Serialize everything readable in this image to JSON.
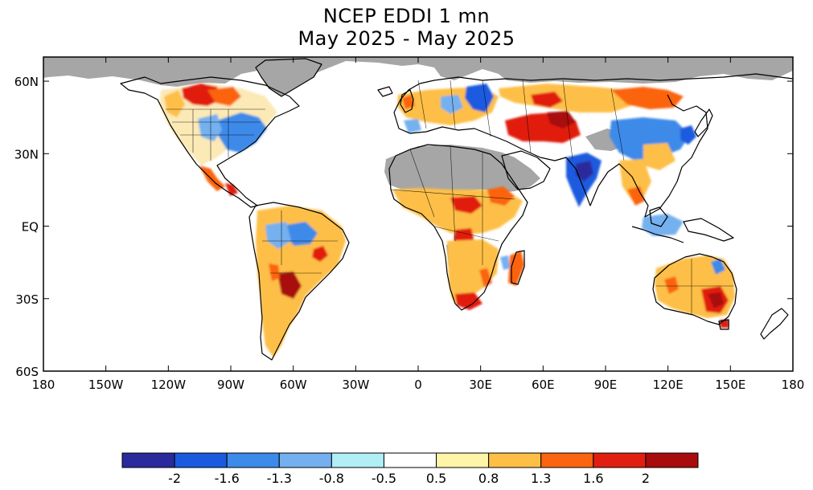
{
  "title": {
    "line1": "NCEP EDDI 1 mn",
    "line2": "May 2025 - May 2025"
  },
  "map": {
    "projection": "equirectangular",
    "lon_range": [
      -180,
      180
    ],
    "lat_range": [
      -60,
      70
    ],
    "x_ticks": [
      {
        "lon": -180,
        "label": "180"
      },
      {
        "lon": -150,
        "label": "150W"
      },
      {
        "lon": -120,
        "label": "120W"
      },
      {
        "lon": -90,
        "label": "90W"
      },
      {
        "lon": -60,
        "label": "60W"
      },
      {
        "lon": -30,
        "label": "30W"
      },
      {
        "lon": 0,
        "label": "0"
      },
      {
        "lon": 30,
        "label": "30E"
      },
      {
        "lon": 60,
        "label": "60E"
      },
      {
        "lon": 90,
        "label": "90E"
      },
      {
        "lon": 120,
        "label": "120E"
      },
      {
        "lon": 150,
        "label": "150E"
      },
      {
        "lon": 180,
        "label": "180"
      }
    ],
    "y_ticks": [
      {
        "lat": 60,
        "label": "60N"
      },
      {
        "lat": 30,
        "label": "30N"
      },
      {
        "lat": 0,
        "label": "EQ"
      },
      {
        "lat": -30,
        "label": "30S"
      },
      {
        "lat": -60,
        "label": "60S"
      }
    ],
    "colors": {
      "nodata": "#a6a6a6",
      "ocean": "#ffffff"
    }
  },
  "colorbar": {
    "colors": [
      "#2a2a9c",
      "#1a5adf",
      "#3c8ae9",
      "#74b0ef",
      "#b1eef6",
      "#ffffff",
      "#fff5a8",
      "#fdbf46",
      "#fb6411",
      "#e11f10",
      "#a90c0c"
    ],
    "labels": [
      "-2",
      "-1.6",
      "-1.3",
      "-0.8",
      "-0.5",
      "0.5",
      "0.8",
      "1.3",
      "1.6",
      "2"
    ]
  }
}
